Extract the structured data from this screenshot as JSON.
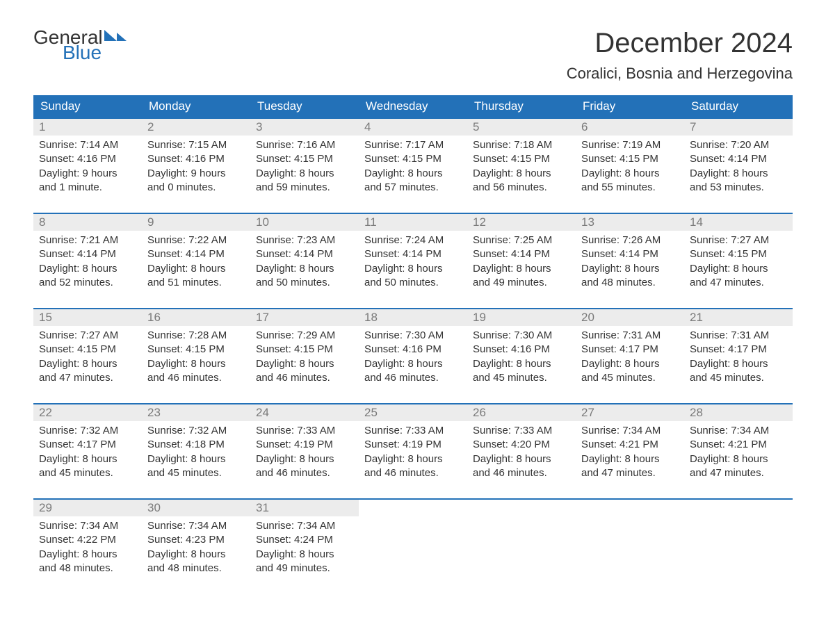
{
  "logo": {
    "word1": "General",
    "word2": "Blue"
  },
  "title": "December 2024",
  "location": "Coralici, Bosnia and Herzegovina",
  "colors": {
    "brand": "#2371b8",
    "header_bg": "#2371b8",
    "header_text": "#ffffff",
    "daynum_bg": "#ececec",
    "daynum_text": "#7a7a7a",
    "body_text": "#333333",
    "page_bg": "#ffffff"
  },
  "day_headers": [
    "Sunday",
    "Monday",
    "Tuesday",
    "Wednesday",
    "Thursday",
    "Friday",
    "Saturday"
  ],
  "weeks": [
    [
      {
        "n": "1",
        "sr": "Sunrise: 7:14 AM",
        "ss": "Sunset: 4:16 PM",
        "dl": "Daylight: 9 hours and 1 minute."
      },
      {
        "n": "2",
        "sr": "Sunrise: 7:15 AM",
        "ss": "Sunset: 4:16 PM",
        "dl": "Daylight: 9 hours and 0 minutes."
      },
      {
        "n": "3",
        "sr": "Sunrise: 7:16 AM",
        "ss": "Sunset: 4:15 PM",
        "dl": "Daylight: 8 hours and 59 minutes."
      },
      {
        "n": "4",
        "sr": "Sunrise: 7:17 AM",
        "ss": "Sunset: 4:15 PM",
        "dl": "Daylight: 8 hours and 57 minutes."
      },
      {
        "n": "5",
        "sr": "Sunrise: 7:18 AM",
        "ss": "Sunset: 4:15 PM",
        "dl": "Daylight: 8 hours and 56 minutes."
      },
      {
        "n": "6",
        "sr": "Sunrise: 7:19 AM",
        "ss": "Sunset: 4:15 PM",
        "dl": "Daylight: 8 hours and 55 minutes."
      },
      {
        "n": "7",
        "sr": "Sunrise: 7:20 AM",
        "ss": "Sunset: 4:14 PM",
        "dl": "Daylight: 8 hours and 53 minutes."
      }
    ],
    [
      {
        "n": "8",
        "sr": "Sunrise: 7:21 AM",
        "ss": "Sunset: 4:14 PM",
        "dl": "Daylight: 8 hours and 52 minutes."
      },
      {
        "n": "9",
        "sr": "Sunrise: 7:22 AM",
        "ss": "Sunset: 4:14 PM",
        "dl": "Daylight: 8 hours and 51 minutes."
      },
      {
        "n": "10",
        "sr": "Sunrise: 7:23 AM",
        "ss": "Sunset: 4:14 PM",
        "dl": "Daylight: 8 hours and 50 minutes."
      },
      {
        "n": "11",
        "sr": "Sunrise: 7:24 AM",
        "ss": "Sunset: 4:14 PM",
        "dl": "Daylight: 8 hours and 50 minutes."
      },
      {
        "n": "12",
        "sr": "Sunrise: 7:25 AM",
        "ss": "Sunset: 4:14 PM",
        "dl": "Daylight: 8 hours and 49 minutes."
      },
      {
        "n": "13",
        "sr": "Sunrise: 7:26 AM",
        "ss": "Sunset: 4:14 PM",
        "dl": "Daylight: 8 hours and 48 minutes."
      },
      {
        "n": "14",
        "sr": "Sunrise: 7:27 AM",
        "ss": "Sunset: 4:15 PM",
        "dl": "Daylight: 8 hours and 47 minutes."
      }
    ],
    [
      {
        "n": "15",
        "sr": "Sunrise: 7:27 AM",
        "ss": "Sunset: 4:15 PM",
        "dl": "Daylight: 8 hours and 47 minutes."
      },
      {
        "n": "16",
        "sr": "Sunrise: 7:28 AM",
        "ss": "Sunset: 4:15 PM",
        "dl": "Daylight: 8 hours and 46 minutes."
      },
      {
        "n": "17",
        "sr": "Sunrise: 7:29 AM",
        "ss": "Sunset: 4:15 PM",
        "dl": "Daylight: 8 hours and 46 minutes."
      },
      {
        "n": "18",
        "sr": "Sunrise: 7:30 AM",
        "ss": "Sunset: 4:16 PM",
        "dl": "Daylight: 8 hours and 46 minutes."
      },
      {
        "n": "19",
        "sr": "Sunrise: 7:30 AM",
        "ss": "Sunset: 4:16 PM",
        "dl": "Daylight: 8 hours and 45 minutes."
      },
      {
        "n": "20",
        "sr": "Sunrise: 7:31 AM",
        "ss": "Sunset: 4:17 PM",
        "dl": "Daylight: 8 hours and 45 minutes."
      },
      {
        "n": "21",
        "sr": "Sunrise: 7:31 AM",
        "ss": "Sunset: 4:17 PM",
        "dl": "Daylight: 8 hours and 45 minutes."
      }
    ],
    [
      {
        "n": "22",
        "sr": "Sunrise: 7:32 AM",
        "ss": "Sunset: 4:17 PM",
        "dl": "Daylight: 8 hours and 45 minutes."
      },
      {
        "n": "23",
        "sr": "Sunrise: 7:32 AM",
        "ss": "Sunset: 4:18 PM",
        "dl": "Daylight: 8 hours and 45 minutes."
      },
      {
        "n": "24",
        "sr": "Sunrise: 7:33 AM",
        "ss": "Sunset: 4:19 PM",
        "dl": "Daylight: 8 hours and 46 minutes."
      },
      {
        "n": "25",
        "sr": "Sunrise: 7:33 AM",
        "ss": "Sunset: 4:19 PM",
        "dl": "Daylight: 8 hours and 46 minutes."
      },
      {
        "n": "26",
        "sr": "Sunrise: 7:33 AM",
        "ss": "Sunset: 4:20 PM",
        "dl": "Daylight: 8 hours and 46 minutes."
      },
      {
        "n": "27",
        "sr": "Sunrise: 7:34 AM",
        "ss": "Sunset: 4:21 PM",
        "dl": "Daylight: 8 hours and 47 minutes."
      },
      {
        "n": "28",
        "sr": "Sunrise: 7:34 AM",
        "ss": "Sunset: 4:21 PM",
        "dl": "Daylight: 8 hours and 47 minutes."
      }
    ],
    [
      {
        "n": "29",
        "sr": "Sunrise: 7:34 AM",
        "ss": "Sunset: 4:22 PM",
        "dl": "Daylight: 8 hours and 48 minutes."
      },
      {
        "n": "30",
        "sr": "Sunrise: 7:34 AM",
        "ss": "Sunset: 4:23 PM",
        "dl": "Daylight: 8 hours and 48 minutes."
      },
      {
        "n": "31",
        "sr": "Sunrise: 7:34 AM",
        "ss": "Sunset: 4:24 PM",
        "dl": "Daylight: 8 hours and 49 minutes."
      },
      null,
      null,
      null,
      null
    ]
  ]
}
